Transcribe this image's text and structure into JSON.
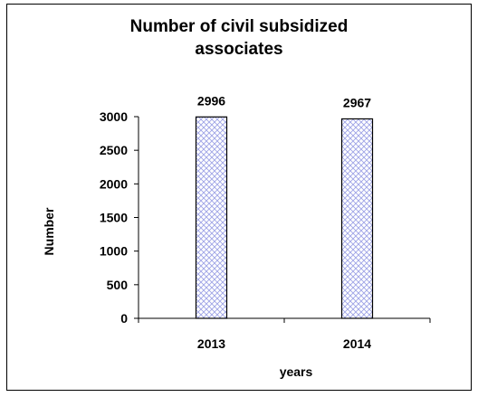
{
  "chart_data": {
    "type": "bar",
    "title_lines": [
      "Number of civil subsidized",
      "associates"
    ],
    "categories": [
      "2013",
      "2014"
    ],
    "values": [
      2996,
      2967
    ],
    "data_labels": [
      "2996",
      "2967"
    ],
    "xlabel": "years",
    "ylabel": "Number",
    "ylim": [
      0,
      3000
    ],
    "yticks": [
      0,
      500,
      1000,
      1500,
      2000,
      2500,
      3000
    ],
    "ytick_labels": [
      "0",
      "500",
      "1000",
      "1500",
      "2000",
      "2500",
      "3000"
    ],
    "grid": false,
    "legend": "none",
    "bar_fill": "#c9ccf2",
    "bar_edge": "#000000"
  }
}
